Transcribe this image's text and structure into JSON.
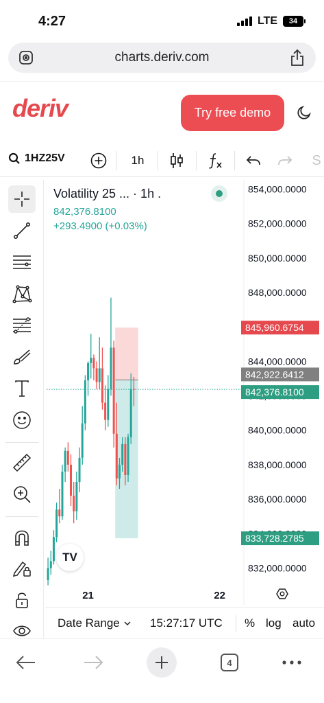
{
  "status_bar": {
    "time": "4:27",
    "network": "LTE",
    "battery": "34"
  },
  "browser": {
    "url": "charts.deriv.com"
  },
  "header": {
    "logo": "deriv",
    "demo_button": "Try free demo"
  },
  "toolbar": {
    "symbol": "1HZ25V",
    "timeframe": "1h"
  },
  "legend": {
    "title": "Volatility 25 ... · 1h .",
    "price": "842,376.8100",
    "change": "+293.4900 (+0.03%)"
  },
  "price_labels": {
    "upper_red": "845,960.6754",
    "entry_gray": "842,922.6412",
    "current": "842,376.8100",
    "lower_green": "833,728.2785"
  },
  "footer": {
    "date_range": "Date Range",
    "time": "15:27:17 UTC",
    "percent": "%",
    "log": "log",
    "auto": "auto"
  },
  "bottom_nav": {
    "tab_count": "4"
  },
  "colors": {
    "up": "#26a69a",
    "down": "#ef5350",
    "brand": "#e5484d"
  },
  "chart_data": {
    "type": "candlestick",
    "y_axis_labels": [
      "854,000.0000",
      "852,000.0000",
      "850,000.0000",
      "848,000.0000",
      "846,000.0000",
      "844,000.0000",
      "842,000.0000",
      "840,000.0000",
      "838,000.0000",
      "836,000.0000",
      "834,000.0000",
      "832,000.0000"
    ],
    "y_ticks": [
      854000,
      852000,
      850000,
      848000,
      846000,
      844000,
      842000,
      840000,
      838000,
      836000,
      834000,
      832000
    ],
    "ylim": [
      831100,
      854300
    ],
    "x_axis_labels": [
      "21",
      "22"
    ],
    "x_label_index": [
      14,
      60
    ],
    "n_slots": 68,
    "candles": [
      {
        "o": 831300,
        "h": 832600,
        "l": 831000,
        "c": 832000
      },
      {
        "o": 832000,
        "h": 833000,
        "l": 831600,
        "c": 832400
      },
      {
        "o": 832400,
        "h": 834200,
        "l": 832200,
        "c": 833800
      },
      {
        "o": 833800,
        "h": 835800,
        "l": 833500,
        "c": 835400
      },
      {
        "o": 835400,
        "h": 836600,
        "l": 834600,
        "c": 835000
      },
      {
        "o": 835000,
        "h": 838000,
        "l": 834800,
        "c": 837600
      },
      {
        "o": 837600,
        "h": 839000,
        "l": 837000,
        "c": 838800
      },
      {
        "o": 838800,
        "h": 839300,
        "l": 837600,
        "c": 838000
      },
      {
        "o": 838000,
        "h": 838600,
        "l": 835600,
        "c": 836200
      },
      {
        "o": 836200,
        "h": 837000,
        "l": 834600,
        "c": 835300
      },
      {
        "o": 835300,
        "h": 837600,
        "l": 834800,
        "c": 837000
      },
      {
        "o": 837000,
        "h": 839000,
        "l": 836400,
        "c": 838400
      },
      {
        "o": 838400,
        "h": 841400,
        "l": 838000,
        "c": 840400
      },
      {
        "o": 840400,
        "h": 843200,
        "l": 840000,
        "c": 842900
      },
      {
        "o": 842900,
        "h": 844000,
        "l": 842000,
        "c": 843900
      },
      {
        "o": 843900,
        "h": 845600,
        "l": 843000,
        "c": 844200
      },
      {
        "o": 844200,
        "h": 844400,
        "l": 842900,
        "c": 843600
      },
      {
        "o": 843600,
        "h": 844000,
        "l": 842400,
        "c": 842800
      },
      {
        "o": 842800,
        "h": 845400,
        "l": 842400,
        "c": 843600
      },
      {
        "o": 843600,
        "h": 844800,
        "l": 841200,
        "c": 841600
      },
      {
        "o": 841600,
        "h": 842600,
        "l": 840000,
        "c": 840600
      },
      {
        "o": 840600,
        "h": 843200,
        "l": 840200,
        "c": 842400
      },
      {
        "o": 842400,
        "h": 847700,
        "l": 842000,
        "c": 844800
      },
      {
        "o": 844800,
        "h": 845200,
        "l": 839000,
        "c": 839800
      },
      {
        "o": 839800,
        "h": 841600,
        "l": 836800,
        "c": 837200
      },
      {
        "o": 837200,
        "h": 838400,
        "l": 836600,
        "c": 838000
      },
      {
        "o": 838000,
        "h": 839600,
        "l": 837600,
        "c": 839200
      },
      {
        "o": 839200,
        "h": 839600,
        "l": 836800,
        "c": 837400
      },
      {
        "o": 837400,
        "h": 839800,
        "l": 837000,
        "c": 839600
      },
      {
        "o": 839600,
        "h": 843300,
        "l": 839200,
        "c": 842400
      },
      {
        "o": 842400,
        "h": 843100,
        "l": 841400,
        "c": 842377
      }
    ],
    "position": {
      "entry": 842922.6412,
      "take_profit_top": 845960.6754,
      "stop_bottom": 833728.2785,
      "current": 842376.81,
      "start_index": 24,
      "end_index": 32
    }
  }
}
